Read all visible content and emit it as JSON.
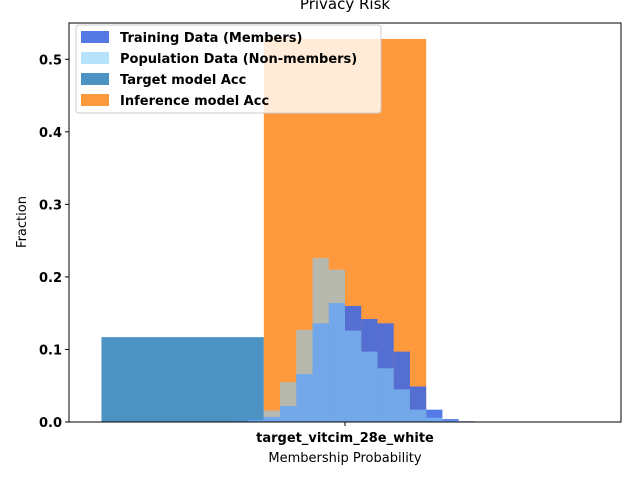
{
  "chart_data": {
    "type": "bar",
    "title": "Privacy Risk",
    "xlabel": "Membership Probability",
    "ylabel": "Fraction",
    "xtick_labels": [
      "target_vitcim_28e_white"
    ],
    "ylim": [
      0,
      0.55
    ],
    "yticks": [
      "0.0",
      "0.1",
      "0.2",
      "0.3",
      "0.4",
      "0.5"
    ],
    "legend_position": "upper-left",
    "grid": false,
    "series": [
      {
        "name": "Training Data (Members)",
        "kind": "histogram",
        "color": "#4169e1",
        "bins": [
          {
            "x0": 0.4,
            "x1": 0.45,
            "y": 0.001
          },
          {
            "x0": 0.45,
            "x1": 0.5,
            "y": 0.003
          },
          {
            "x0": 0.5,
            "x1": 0.55,
            "y": 0.007
          },
          {
            "x0": 0.55,
            "x1": 0.6,
            "y": 0.022
          },
          {
            "x0": 0.6,
            "x1": 0.65,
            "y": 0.066
          },
          {
            "x0": 0.65,
            "x1": 0.7,
            "y": 0.136
          },
          {
            "x0": 0.7,
            "x1": 0.75,
            "y": 0.164
          },
          {
            "x0": 0.75,
            "x1": 0.8,
            "y": 0.16
          },
          {
            "x0": 0.8,
            "x1": 0.85,
            "y": 0.142
          },
          {
            "x0": 0.85,
            "x1": 0.9,
            "y": 0.136
          },
          {
            "x0": 0.9,
            "x1": 0.95,
            "y": 0.097
          },
          {
            "x0": 0.95,
            "x1": 1.0,
            "y": 0.049
          },
          {
            "x0": 1.0,
            "x1": 1.05,
            "y": 0.017
          },
          {
            "x0": 1.05,
            "x1": 1.1,
            "y": 0.004
          },
          {
            "x0": 1.1,
            "x1": 1.15,
            "y": 0.001
          }
        ]
      },
      {
        "name": "Population Data (Non-members)",
        "kind": "histogram",
        "color": "#87cefa",
        "bins": [
          {
            "x0": 0.4,
            "x1": 0.45,
            "y": 0.001
          },
          {
            "x0": 0.45,
            "x1": 0.5,
            "y": 0.003
          },
          {
            "x0": 0.5,
            "x1": 0.55,
            "y": 0.016
          },
          {
            "x0": 0.55,
            "x1": 0.6,
            "y": 0.055
          },
          {
            "x0": 0.6,
            "x1": 0.65,
            "y": 0.127
          },
          {
            "x0": 0.65,
            "x1": 0.7,
            "y": 0.226
          },
          {
            "x0": 0.7,
            "x1": 0.75,
            "y": 0.21
          },
          {
            "x0": 0.75,
            "x1": 0.8,
            "y": 0.126
          },
          {
            "x0": 0.8,
            "x1": 0.85,
            "y": 0.097
          },
          {
            "x0": 0.85,
            "x1": 0.9,
            "y": 0.074
          },
          {
            "x0": 0.9,
            "x1": 0.95,
            "y": 0.045
          },
          {
            "x0": 0.95,
            "x1": 1.0,
            "y": 0.017
          },
          {
            "x0": 1.0,
            "x1": 1.05,
            "y": 0.006
          },
          {
            "x0": 1.05,
            "x1": 1.1,
            "y": 0.002
          }
        ]
      },
      {
        "name": "Target model Acc",
        "kind": "bar",
        "color": "#1f77b4",
        "x0": 0.0,
        "x1": 0.5,
        "y": 0.117
      },
      {
        "name": "Inference model Acc",
        "kind": "bar",
        "color": "#ff7f0e",
        "x0": 0.5,
        "x1": 1.0,
        "y": 0.528
      }
    ]
  }
}
